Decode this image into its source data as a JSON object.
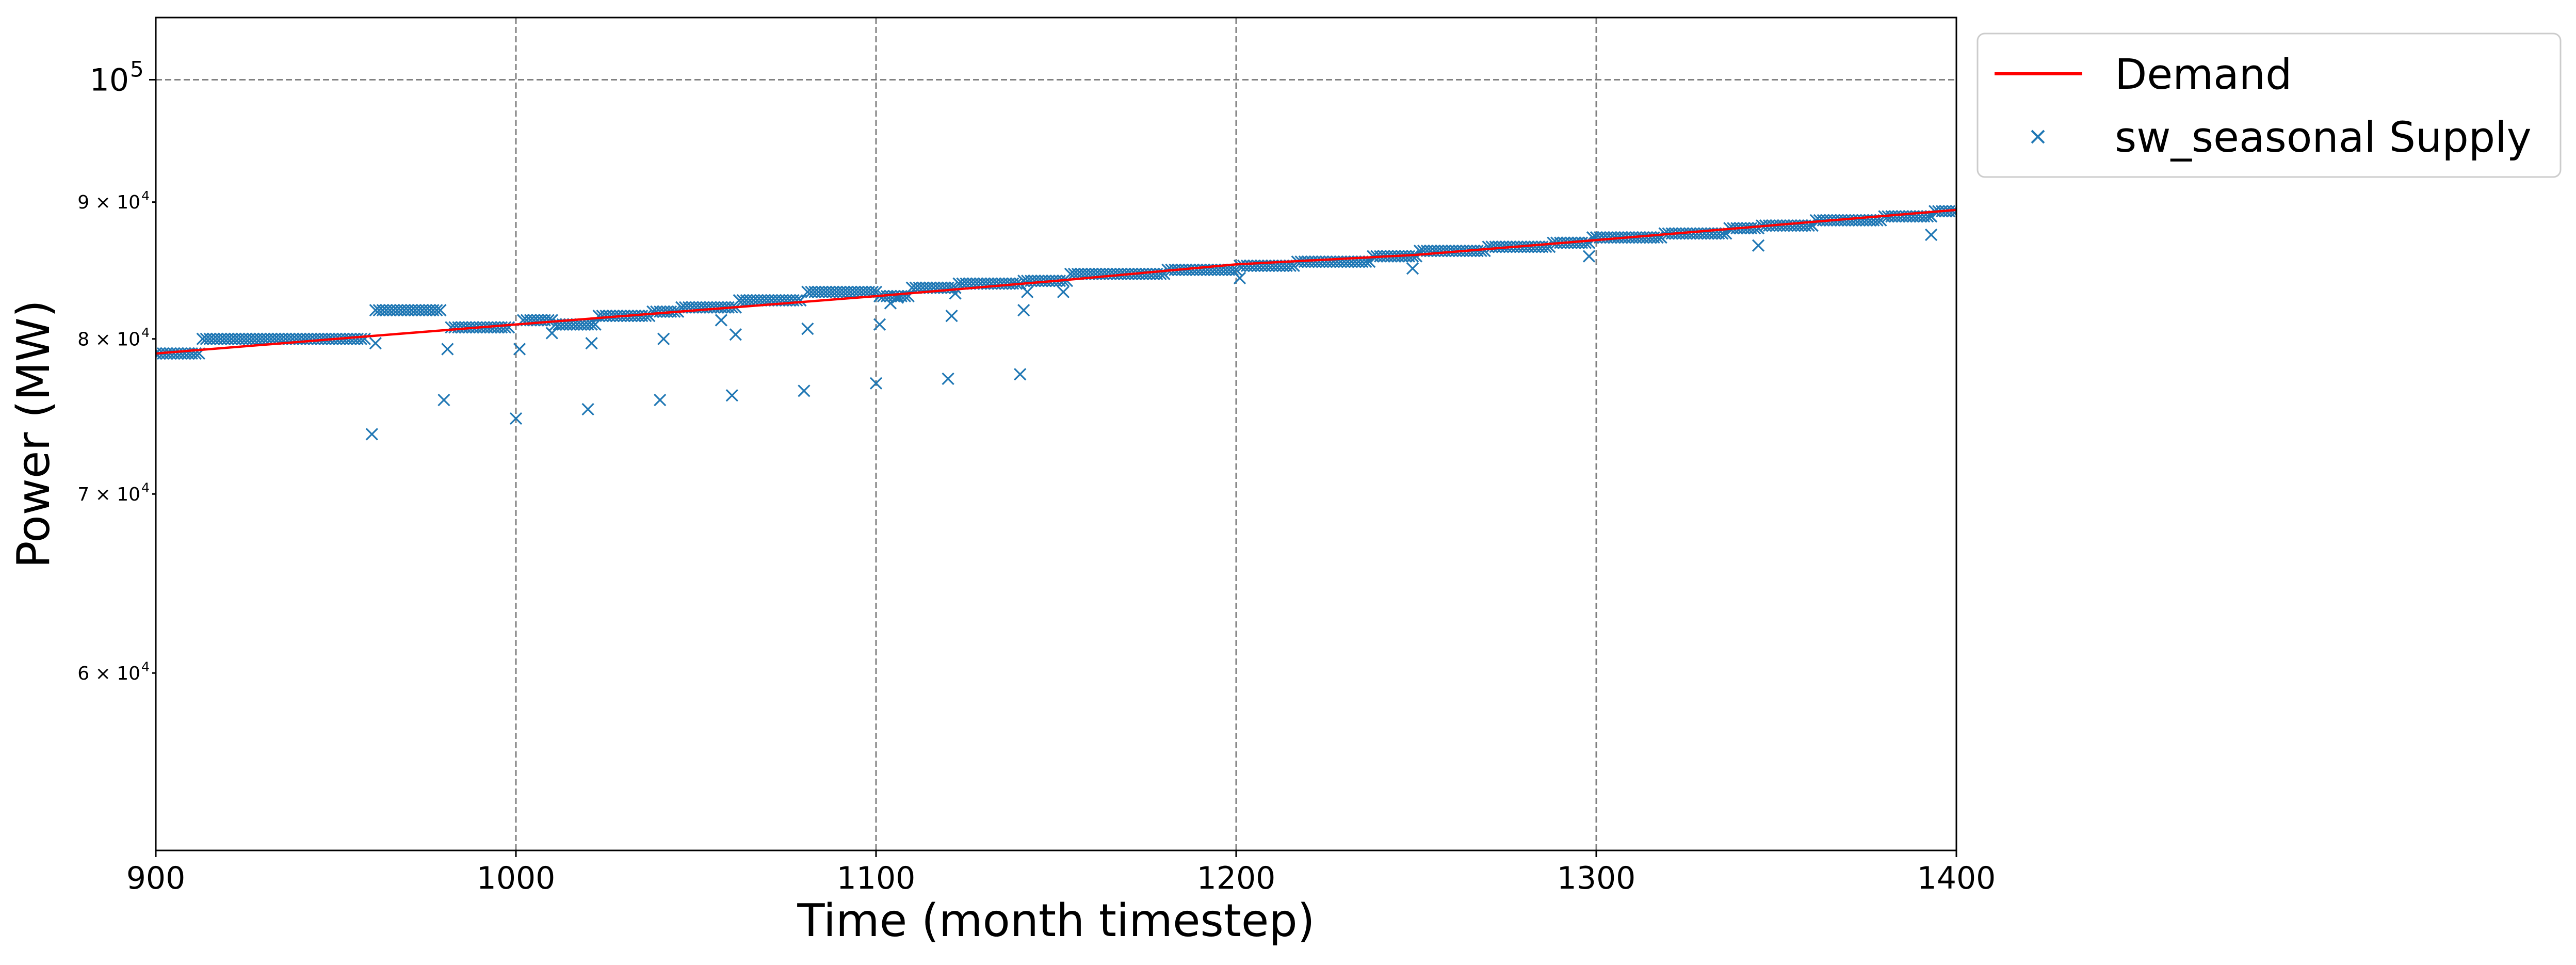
{
  "chart_data": {
    "type": "scatter",
    "xlabel": "Time (month timestep)",
    "ylabel": "Power (MW)",
    "xlim": [
      900,
      1400
    ],
    "ylim": [
      51500,
      105500
    ],
    "yscale": "log",
    "grid": "major dashed",
    "legend": "outside upper-right",
    "x_ticks": [
      900,
      1000,
      1100,
      1200,
      1300,
      1400
    ],
    "x_tick_labels": [
      "900",
      "1000",
      "1100",
      "1200",
      "1300",
      "1400"
    ],
    "y_ticks": [
      {
        "value": 100000,
        "base": "10",
        "exp": "5",
        "major": true
      },
      {
        "value": 90000,
        "base": "9 × 10",
        "exp": "4",
        "major": false
      },
      {
        "value": 80000,
        "base": "8 × 10",
        "exp": "4",
        "major": false
      },
      {
        "value": 70000,
        "base": "7 × 10",
        "exp": "4",
        "major": false
      },
      {
        "value": 60000,
        "base": "6 × 10",
        "exp": "4",
        "major": false
      }
    ],
    "series": [
      {
        "name": "Demand",
        "kind": "line",
        "color": "#ff0000",
        "points": [
          [
            900,
            79000
          ],
          [
            960,
            80200
          ],
          [
            1000,
            81000
          ],
          [
            1100,
            83000
          ],
          [
            1150,
            84100
          ],
          [
            1200,
            85300
          ],
          [
            1250,
            86000
          ],
          [
            1300,
            87100
          ],
          [
            1400,
            89400
          ]
        ]
      },
      {
        "name": "sw_seasonal Supply",
        "kind": "scatter",
        "marker": "x",
        "color": "#1f77b4",
        "segments": [
          [
            900,
            912,
            79000
          ],
          [
            913,
            958,
            80000
          ],
          [
            961,
            979,
            82000
          ],
          [
            982,
            998,
            80800
          ],
          [
            1002,
            1010,
            81300
          ],
          [
            1011,
            1022,
            81000
          ],
          [
            1023,
            1037,
            81600
          ],
          [
            1038,
            1045,
            81900
          ],
          [
            1046,
            1061,
            82200
          ],
          [
            1062,
            1079,
            82700
          ],
          [
            1081,
            1100,
            83300
          ],
          [
            1101,
            1109,
            83000
          ],
          [
            1110,
            1122,
            83600
          ],
          [
            1123,
            1140,
            83900
          ],
          [
            1141,
            1153,
            84100
          ],
          [
            1154,
            1180,
            84600
          ],
          [
            1181,
            1200,
            84900
          ],
          [
            1201,
            1216,
            85200
          ],
          [
            1217,
            1237,
            85500
          ],
          [
            1238,
            1250,
            85900
          ],
          [
            1251,
            1269,
            86300
          ],
          [
            1270,
            1287,
            86600
          ],
          [
            1288,
            1298,
            86900
          ],
          [
            1299,
            1318,
            87300
          ],
          [
            1319,
            1336,
            87600
          ],
          [
            1337,
            1345,
            88000
          ],
          [
            1346,
            1360,
            88200
          ],
          [
            1361,
            1379,
            88600
          ],
          [
            1380,
            1393,
            88900
          ],
          [
            1394,
            1400,
            89300
          ]
        ],
        "points": [
          [
            960,
            73700
          ],
          [
            980,
            75900
          ],
          [
            1000,
            74700
          ],
          [
            1020,
            75300
          ],
          [
            1040,
            75900
          ],
          [
            1060,
            76200
          ],
          [
            1080,
            76500
          ],
          [
            1100,
            77000
          ],
          [
            1120,
            77300
          ],
          [
            1140,
            77600
          ],
          [
            961,
            79700
          ],
          [
            981,
            79300
          ],
          [
            1001,
            79300
          ],
          [
            1021,
            79700
          ],
          [
            1041,
            80000
          ],
          [
            1061,
            80300
          ],
          [
            1081,
            80700
          ],
          [
            1101,
            81000
          ],
          [
            1121,
            81600
          ],
          [
            1141,
            82000
          ],
          [
            1010,
            80400
          ],
          [
            1057,
            81300
          ],
          [
            1104,
            82500
          ],
          [
            1106,
            82900
          ],
          [
            1122,
            83200
          ],
          [
            1142,
            83300
          ],
          [
            1152,
            83300
          ],
          [
            1201,
            84300
          ],
          [
            1249,
            85000
          ],
          [
            1298,
            85900
          ],
          [
            1345,
            86700
          ],
          [
            1393,
            87500
          ]
        ]
      }
    ]
  }
}
